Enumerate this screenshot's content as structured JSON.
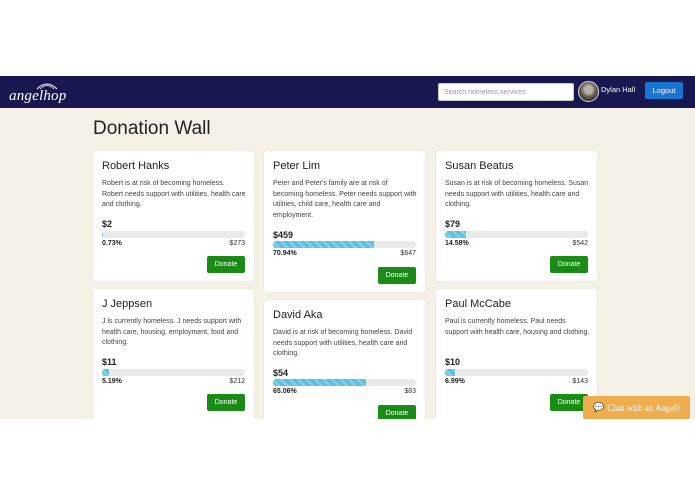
{
  "header": {
    "logo_text": "angelhop",
    "search_placeholder": "Search homeless services",
    "user_name": "Dylan Hall",
    "logout_label": "Logout"
  },
  "page": {
    "title": "Donation Wall"
  },
  "cards": [
    {
      "name": "Robert Hanks",
      "desc": "Robert is at risk of becoming homeless. Robert needs support with utilities, health care and clothing.",
      "amount": "$2",
      "percent": "0.73%",
      "progress": 0.0073,
      "goal": "$273",
      "donate_label": "Donate"
    },
    {
      "name": "Peter Lim",
      "desc": "Peter and Peter's family are at risk of becoming homeless. Peter needs support with utilities, child care, health care and employment.",
      "amount": "$459",
      "percent": "70.94%",
      "progress": 0.7094,
      "goal": "$647",
      "donate_label": "Donate"
    },
    {
      "name": "Susan Beatus",
      "desc": "Susan is at risk of becoming homeless. Susan needs support with utilities, health care and clothing.",
      "amount": "$79",
      "percent": "14.58%",
      "progress": 0.1458,
      "goal": "$542",
      "donate_label": "Donate"
    },
    {
      "name": "J Jeppsen",
      "desc": "J is currently homeless. J needs support with health care, housing, employment, food and clothing.",
      "amount": "$11",
      "percent": "5.19%",
      "progress": 0.0519,
      "goal": "$212",
      "donate_label": "Donate"
    },
    {
      "name": "David Aka",
      "desc": "David is at risk of becoming homeless. David needs support with utilities, health care and clothing.",
      "amount": "$54",
      "percent": "65.06%",
      "progress": 0.6506,
      "goal": "$83",
      "donate_label": "Donate"
    },
    {
      "name": "Paul McCabe",
      "desc": "Paul is currently homeless. Paul needs support with health care, housing and clothing.",
      "amount": "$10",
      "percent": "6.99%",
      "progress": 0.0699,
      "goal": "$143",
      "donate_label": "Donate"
    }
  ],
  "chat": {
    "label": "Chat with an Angel!",
    "icon": "chat-bubble-icon"
  },
  "colors": {
    "navbar": "#19174f",
    "background": "#f5f1e6",
    "donate": "#1a8c16",
    "logout": "#1a74d2",
    "progress": "#5bc0de",
    "chat": "#f0ad4e"
  }
}
